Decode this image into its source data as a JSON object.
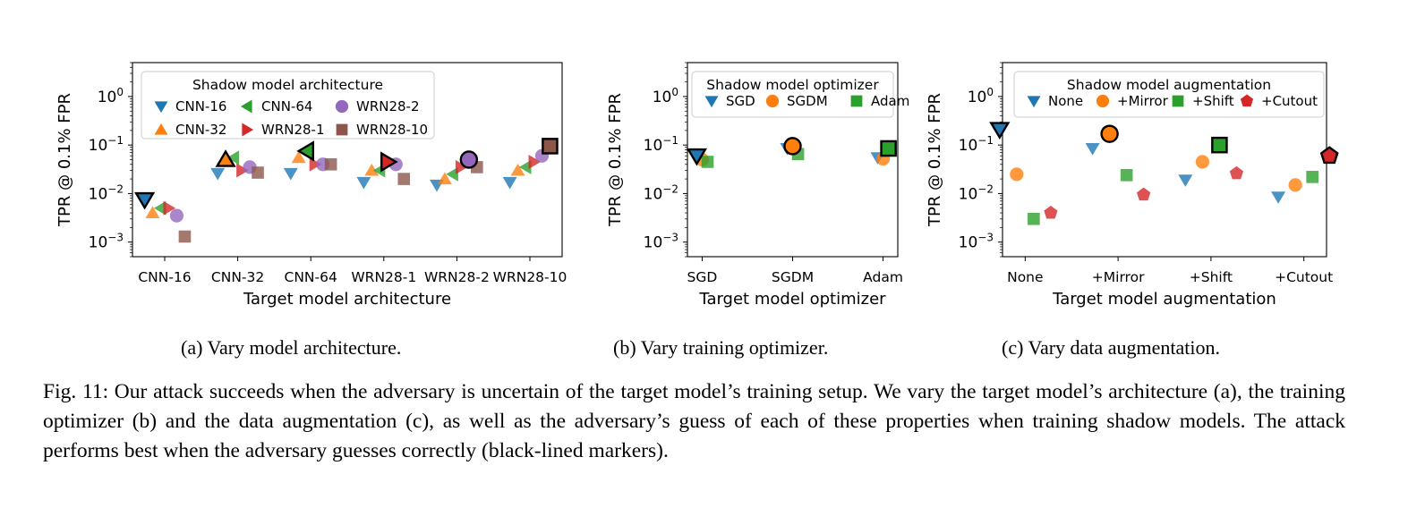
{
  "chart_data": [
    {
      "type": "scatter",
      "xlabel": "Target model architecture",
      "ylabel": "TPR @ 0.1% FPR",
      "yscale": "log",
      "ylim": [
        0.0005,
        5
      ],
      "yticks": [
        "10^0",
        "10^-1",
        "10^-2",
        "10^-3"
      ],
      "categories": [
        "CNN-16",
        "CNN-32",
        "CNN-64",
        "WRN28-1",
        "WRN28-2",
        "WRN28-10"
      ],
      "legend": {
        "title": "Shadow model architecture",
        "placement": "top-left",
        "columns": 3,
        "entries": [
          "CNN-16",
          "CNN-32",
          "CNN-64",
          "WRN28-1",
          "WRN28-2",
          "WRN28-10"
        ]
      },
      "series": [
        {
          "name": "CNN-16",
          "marker": "triangle-down",
          "color": "#1f77b4",
          "values": [
            0.0075,
            0.026,
            0.026,
            0.017,
            0.015,
            0.017
          ]
        },
        {
          "name": "CNN-32",
          "marker": "triangle-up",
          "color": "#ff7f0e",
          "values": [
            0.004,
            0.05,
            0.055,
            0.03,
            0.02,
            0.03
          ]
        },
        {
          "name": "CNN-64",
          "marker": "triangle-left",
          "color": "#2ca02c",
          "values": [
            0.005,
            0.055,
            0.075,
            0.03,
            0.025,
            0.035
          ]
        },
        {
          "name": "WRN28-1",
          "marker": "triangle-right",
          "color": "#d62728",
          "values": [
            0.005,
            0.03,
            0.04,
            0.045,
            0.035,
            0.045
          ]
        },
        {
          "name": "WRN28-2",
          "marker": "circle",
          "color": "#9467bd",
          "values": [
            0.0035,
            0.035,
            0.04,
            0.04,
            0.05,
            0.06
          ]
        },
        {
          "name": "WRN28-10",
          "marker": "square",
          "color": "#8c564b",
          "values": [
            0.0013,
            0.027,
            0.04,
            0.02,
            0.035,
            0.095
          ]
        }
      ],
      "highlighted": "matching target and shadow setting (black-lined markers)"
    },
    {
      "type": "scatter",
      "xlabel": "Target model optimizer",
      "ylabel": "TPR @ 0.1% FPR",
      "yscale": "log",
      "ylim": [
        0.0005,
        5
      ],
      "yticks": [
        "10^0",
        "10^-1",
        "10^-2",
        "10^-3"
      ],
      "categories": [
        "SGD",
        "SGDM",
        "Adam"
      ],
      "legend": {
        "title": "Shadow model optimizer",
        "placement": "top-right",
        "columns": 3,
        "entries": [
          "SGD",
          "SGDM",
          "Adam"
        ]
      },
      "series": [
        {
          "name": "SGD",
          "marker": "triangle-down",
          "color": "#1f77b4",
          "values": [
            0.06,
            0.085,
            0.055
          ]
        },
        {
          "name": "SGDM",
          "marker": "circle",
          "color": "#ff7f0e",
          "values": [
            0.05,
            0.095,
            0.052
          ]
        },
        {
          "name": "Adam",
          "marker": "square",
          "color": "#2ca02c",
          "values": [
            0.045,
            0.065,
            0.085
          ]
        }
      ]
    },
    {
      "type": "scatter",
      "xlabel": "Target model augmentation",
      "ylabel": "TPR @ 0.1% FPR",
      "yscale": "log",
      "ylim": [
        0.0005,
        5
      ],
      "yticks": [
        "10^0",
        "10^-1",
        "10^-2",
        "10^-3"
      ],
      "categories": [
        "None",
        "+Mirror",
        "+Shift",
        "+Cutout"
      ],
      "legend": {
        "title": "Shadow model augmentation",
        "placement": "top",
        "columns": 4,
        "entries": [
          "None",
          "+Mirror",
          "+Shift",
          "+Cutout"
        ]
      },
      "series": [
        {
          "name": "None",
          "marker": "triangle-down",
          "color": "#1f77b4",
          "values": [
            0.21,
            0.085,
            0.019,
            0.0085
          ]
        },
        {
          "name": "+Mirror",
          "marker": "circle",
          "color": "#ff7f0e",
          "values": [
            0.025,
            0.17,
            0.045,
            0.015
          ]
        },
        {
          "name": "+Shift",
          "marker": "square",
          "color": "#2ca02c",
          "values": [
            0.003,
            0.024,
            0.1,
            0.022
          ]
        },
        {
          "name": "+Cutout",
          "marker": "pentagon",
          "color": "#d62728",
          "values": [
            0.004,
            0.0095,
            0.026,
            0.06
          ]
        }
      ]
    }
  ],
  "subcaptions": [
    "(a) Vary model architecture.",
    "(b) Vary training optimizer.",
    "(c) Vary data augmentation."
  ],
  "caption": "Fig. 11: Our attack succeeds when the adversary is uncertain of the target model’s training setup. We vary the target model’s architecture (a), the training optimizer (b) and the data augmentation (c), as well as the adversary’s guess of each of these properties when training shadow models. The attack performs best when the adversary guesses correctly (black-lined markers)."
}
